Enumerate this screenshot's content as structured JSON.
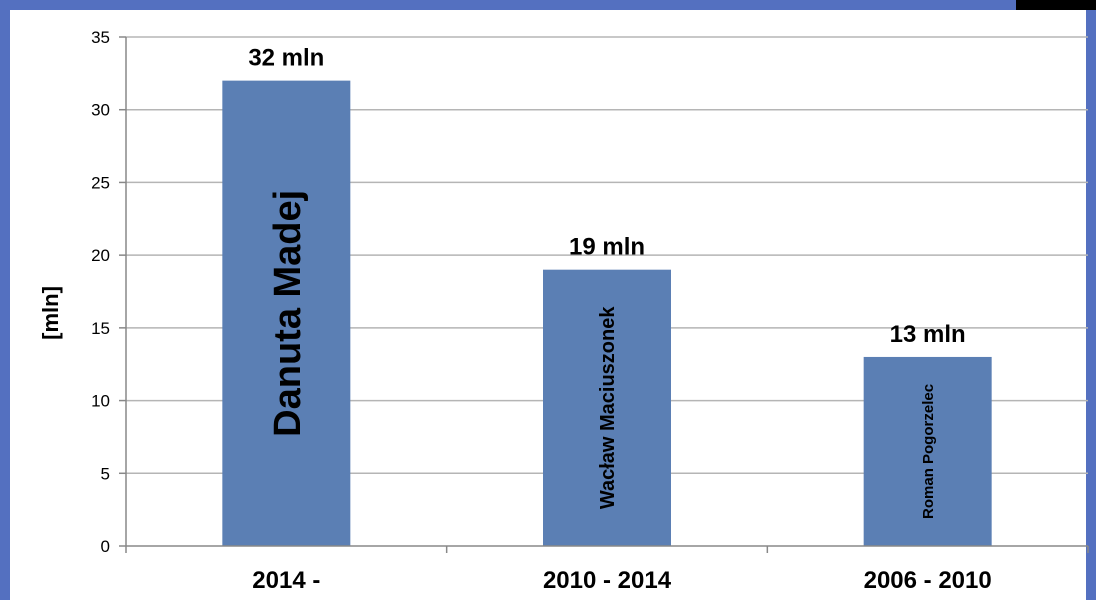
{
  "chart_data": {
    "type": "bar",
    "categories": [
      "2014 -",
      "2010 - 2014",
      "2006 - 2010"
    ],
    "values": [
      32,
      19,
      13
    ],
    "data_labels": [
      "32 mln",
      "19 mln",
      "13 mln"
    ],
    "bar_names": [
      "Danuta Madej",
      "Wacław Maciuszonek",
      "Roman Pogorzelec"
    ],
    "title": "",
    "xlabel": "",
    "ylabel": "[mln]",
    "ylim": [
      0,
      35
    ],
    "yticks": [
      0,
      5,
      10,
      15,
      20,
      25,
      30,
      35
    ],
    "grid": true,
    "legend": "none",
    "bar_color": "#5b7fb4",
    "frame_color": "#5470c0"
  }
}
